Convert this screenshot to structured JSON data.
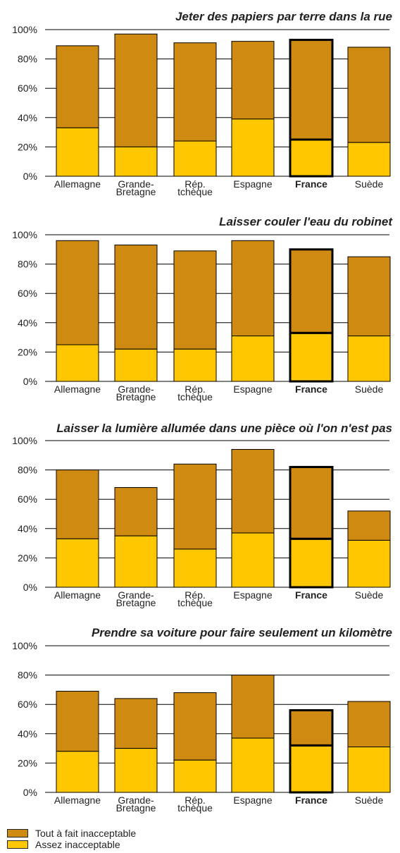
{
  "colors": {
    "dark": "#CF8A12",
    "light": "#FEC700",
    "grid": "#000000",
    "text": "#222222"
  },
  "chart_data": [
    {
      "type": "bar",
      "stacked": true,
      "title": "Jeter des papiers par terre dans la rue",
      "categories": [
        "Allemagne",
        "Grande-\nBretagne",
        "Rép.\ntchèque",
        "Espagne",
        "France",
        "Suède"
      ],
      "highlight": "France",
      "yticks": [
        "0%",
        "20%",
        "40%",
        "60%",
        "80%",
        "100%"
      ],
      "ylim": [
        0,
        100
      ],
      "series": [
        {
          "name": "Assez inacceptable",
          "values": [
            33,
            20,
            24,
            39,
            25,
            23
          ]
        },
        {
          "name": "Tout à fait inacceptable",
          "values": [
            56,
            77,
            67,
            53,
            68,
            65
          ]
        }
      ]
    },
    {
      "type": "bar",
      "stacked": true,
      "title": "Laisser couler l'eau du robinet",
      "categories": [
        "Allemagne",
        "Grande-\nBretagne",
        "Rép.\ntchèque",
        "Espagne",
        "France",
        "Suède"
      ],
      "highlight": "France",
      "yticks": [
        "0%",
        "20%",
        "40%",
        "60%",
        "80%",
        "100%"
      ],
      "ylim": [
        0,
        100
      ],
      "series": [
        {
          "name": "Assez inacceptable",
          "values": [
            25,
            22,
            22,
            31,
            33,
            31
          ]
        },
        {
          "name": "Tout à fait inacceptable",
          "values": [
            71,
            71,
            67,
            65,
            57,
            54
          ]
        }
      ]
    },
    {
      "type": "bar",
      "stacked": true,
      "title": "Laisser la lumière allumée dans une pièce où l'on n'est pas",
      "categories": [
        "Allemagne",
        "Grande-\nBretagne",
        "Rép.\ntchèque",
        "Espagne",
        "France",
        "Suède"
      ],
      "highlight": "France",
      "yticks": [
        "0%",
        "20%",
        "40%",
        "60%",
        "80%",
        "100%"
      ],
      "ylim": [
        0,
        100
      ],
      "series": [
        {
          "name": "Assez inacceptable",
          "values": [
            33,
            35,
            26,
            37,
            33,
            32
          ]
        },
        {
          "name": "Tout à fait inacceptable",
          "values": [
            47,
            33,
            58,
            57,
            49,
            20
          ]
        }
      ]
    },
    {
      "type": "bar",
      "stacked": true,
      "title": "Prendre sa voiture pour faire seulement un kilomètre",
      "categories": [
        "Allemagne",
        "Grande-\nBretagne",
        "Rép.\ntchèque",
        "Espagne",
        "France",
        "Suède"
      ],
      "highlight": "France",
      "yticks": [
        "0%",
        "20%",
        "40%",
        "60%",
        "80%",
        "100%"
      ],
      "ylim": [
        0,
        100
      ],
      "series": [
        {
          "name": "Assez inacceptable",
          "values": [
            28,
            30,
            22,
            37,
            32,
            31
          ]
        },
        {
          "name": "Tout à fait inacceptable",
          "values": [
            41,
            34,
            46,
            43,
            24,
            31
          ]
        }
      ]
    }
  ],
  "legend": {
    "items": [
      {
        "label": "Tout à fait inacceptable",
        "color": "#CF8A12"
      },
      {
        "label": "Assez inacceptable",
        "color": "#FEC700"
      }
    ]
  }
}
